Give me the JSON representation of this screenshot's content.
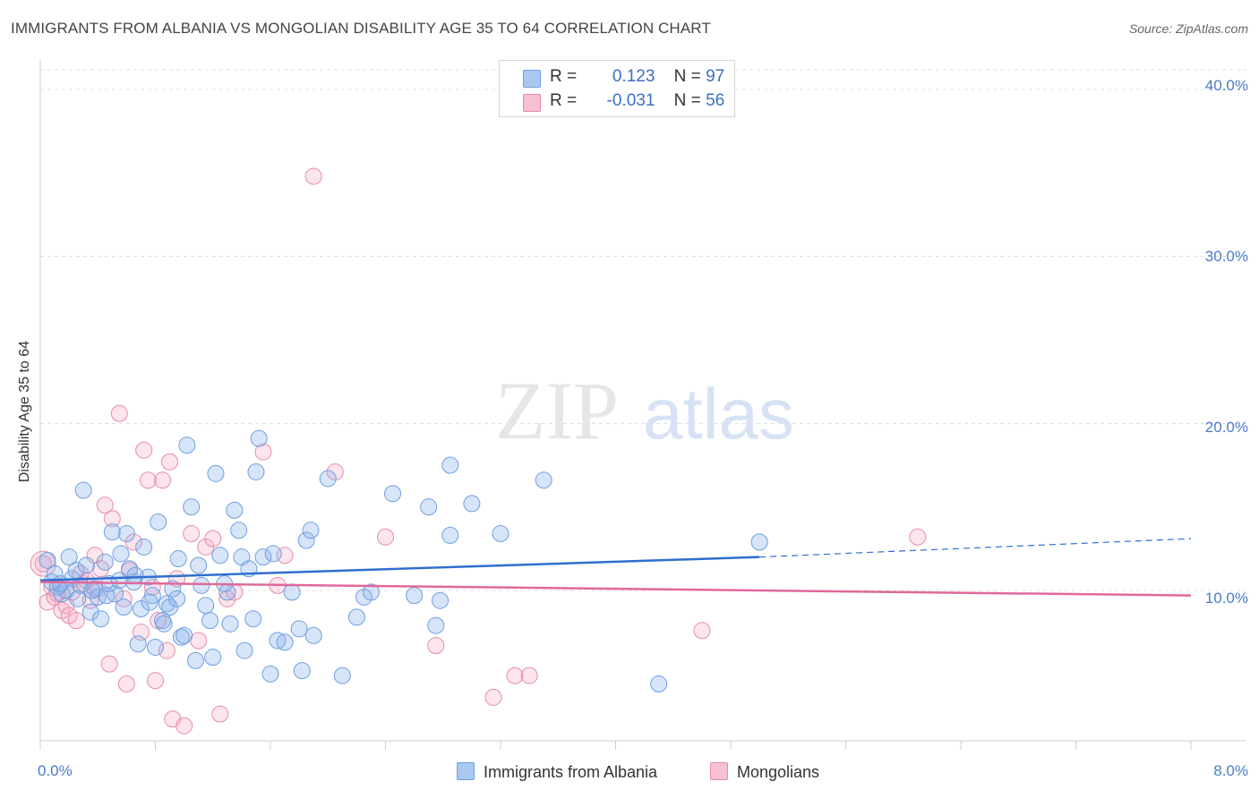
{
  "header": {
    "title": "IMMIGRANTS FROM ALBANIA VS MONGOLIAN DISABILITY AGE 35 TO 64 CORRELATION CHART",
    "source": "Source: ZipAtlas.com"
  },
  "watermark": {
    "zip": "ZIP",
    "atlas": "atlas"
  },
  "legend": {
    "r_label": "R =",
    "n_label": "N =",
    "rows": [
      {
        "r": "0.123",
        "n": "97",
        "color": "#a9c8ef",
        "border": "#6f9fe0"
      },
      {
        "r": "-0.031",
        "n": "56",
        "color": "#f7c0d3",
        "border": "#e88aaa"
      }
    ]
  },
  "bottom_legend": {
    "series1": "Immigrants from Albania",
    "series2": "Mongolians"
  },
  "axes": {
    "ylabel": "Disability Age 35 to 64",
    "yticks": [
      "40.0%",
      "30.0%",
      "20.0%",
      "10.0%"
    ],
    "x_min_label": "0.0%",
    "x_max_label": "8.0%"
  },
  "colors": {
    "blue_fill": "rgba(140,180,235,0.35)",
    "blue_stroke": "#6f9fe0",
    "blue_line": "#2f6fcf",
    "pink_fill": "rgba(245,170,195,0.30)",
    "pink_stroke": "#e88aaa",
    "pink_line": "#e0699a"
  },
  "chart_data": {
    "type": "scatter",
    "xlabel": "",
    "ylabel": "Disability Age 35 to 64",
    "xlim": [
      0,
      8
    ],
    "ylim": [
      1,
      41.5
    ],
    "grid": true,
    "legend_placement": "top-center",
    "series": [
      {
        "name": "Immigrants from Albania",
        "r": 0.123,
        "n": 97,
        "trend": {
          "x0": 0,
          "y0": 10.6,
          "x1": 5.0,
          "y1": 12.0,
          "dashed_to_x": 8.0,
          "dashed_y": 13.1
        },
        "points": [
          [
            0.05,
            11.8
          ],
          [
            0.08,
            10.5
          ],
          [
            0.12,
            10.2
          ],
          [
            0.15,
            9.8
          ],
          [
            0.18,
            10.0
          ],
          [
            0.2,
            12.0
          ],
          [
            0.22,
            10.7
          ],
          [
            0.25,
            11.2
          ],
          [
            0.28,
            10.3
          ],
          [
            0.3,
            16.0
          ],
          [
            0.32,
            11.5
          ],
          [
            0.35,
            8.7
          ],
          [
            0.38,
            10.1
          ],
          [
            0.4,
            9.6
          ],
          [
            0.42,
            8.3
          ],
          [
            0.45,
            11.7
          ],
          [
            0.48,
            10.4
          ],
          [
            0.5,
            13.5
          ],
          [
            0.52,
            9.8
          ],
          [
            0.55,
            10.6
          ],
          [
            0.58,
            9.0
          ],
          [
            0.6,
            13.4
          ],
          [
            0.62,
            11.3
          ],
          [
            0.65,
            10.5
          ],
          [
            0.68,
            6.8
          ],
          [
            0.7,
            8.9
          ],
          [
            0.72,
            12.6
          ],
          [
            0.75,
            10.8
          ],
          [
            0.78,
            9.7
          ],
          [
            0.8,
            6.6
          ],
          [
            0.82,
            14.1
          ],
          [
            0.85,
            8.2
          ],
          [
            0.88,
            9.2
          ],
          [
            0.9,
            9.0
          ],
          [
            0.92,
            10.1
          ],
          [
            0.95,
            9.5
          ],
          [
            0.98,
            7.2
          ],
          [
            1.0,
            7.3
          ],
          [
            1.02,
            18.7
          ],
          [
            1.05,
            15.0
          ],
          [
            1.08,
            5.8
          ],
          [
            1.1,
            11.5
          ],
          [
            1.12,
            10.3
          ],
          [
            1.15,
            9.1
          ],
          [
            1.18,
            8.2
          ],
          [
            1.2,
            6.0
          ],
          [
            1.22,
            17.0
          ],
          [
            1.25,
            12.1
          ],
          [
            1.28,
            10.4
          ],
          [
            1.3,
            9.9
          ],
          [
            1.32,
            8.0
          ],
          [
            1.35,
            14.8
          ],
          [
            1.38,
            13.6
          ],
          [
            1.4,
            12.0
          ],
          [
            1.42,
            6.4
          ],
          [
            1.45,
            11.3
          ],
          [
            1.48,
            8.3
          ],
          [
            1.5,
            17.1
          ],
          [
            1.52,
            19.1
          ],
          [
            1.55,
            12.0
          ],
          [
            1.6,
            5.0
          ],
          [
            1.62,
            12.2
          ],
          [
            1.65,
            7.0
          ],
          [
            1.7,
            6.9
          ],
          [
            1.75,
            9.9
          ],
          [
            1.8,
            7.7
          ],
          [
            1.82,
            5.2
          ],
          [
            1.85,
            13.0
          ],
          [
            1.88,
            13.6
          ],
          [
            1.9,
            7.3
          ],
          [
            2.0,
            16.7
          ],
          [
            2.1,
            4.9
          ],
          [
            2.2,
            8.4
          ],
          [
            2.25,
            9.6
          ],
          [
            2.3,
            9.9
          ],
          [
            2.45,
            15.8
          ],
          [
            2.6,
            9.7
          ],
          [
            2.7,
            15.0
          ],
          [
            2.75,
            7.9
          ],
          [
            2.78,
            9.4
          ],
          [
            2.85,
            13.3
          ],
          [
            2.85,
            17.5
          ],
          [
            3.0,
            15.2
          ],
          [
            3.2,
            13.4
          ],
          [
            3.5,
            16.6
          ],
          [
            4.3,
            4.4
          ],
          [
            5.0,
            12.9
          ],
          [
            0.1,
            11.0
          ],
          [
            0.14,
            10.4
          ],
          [
            0.26,
            9.5
          ],
          [
            0.36,
            10.0
          ],
          [
            0.46,
            9.7
          ],
          [
            0.56,
            12.2
          ],
          [
            0.66,
            10.9
          ],
          [
            0.76,
            9.3
          ],
          [
            0.86,
            8.0
          ],
          [
            0.96,
            11.9
          ]
        ]
      },
      {
        "name": "Mongolians",
        "r": -0.031,
        "n": 56,
        "trend": {
          "x0": 0,
          "y0": 10.5,
          "x1": 8.0,
          "y1": 9.7
        },
        "points": [
          [
            0.02,
            11.6
          ],
          [
            0.05,
            9.3
          ],
          [
            0.08,
            10.2
          ],
          [
            0.1,
            9.6
          ],
          [
            0.12,
            9.8
          ],
          [
            0.15,
            8.8
          ],
          [
            0.18,
            9.1
          ],
          [
            0.2,
            8.5
          ],
          [
            0.22,
            9.9
          ],
          [
            0.25,
            8.2
          ],
          [
            0.28,
            11.0
          ],
          [
            0.3,
            10.4
          ],
          [
            0.32,
            10.6
          ],
          [
            0.35,
            9.4
          ],
          [
            0.38,
            12.1
          ],
          [
            0.4,
            10.1
          ],
          [
            0.42,
            11.3
          ],
          [
            0.45,
            15.1
          ],
          [
            0.48,
            5.6
          ],
          [
            0.5,
            14.3
          ],
          [
            0.55,
            20.6
          ],
          [
            0.58,
            9.5
          ],
          [
            0.6,
            4.4
          ],
          [
            0.62,
            11.2
          ],
          [
            0.65,
            12.9
          ],
          [
            0.7,
            7.5
          ],
          [
            0.72,
            18.4
          ],
          [
            0.75,
            16.6
          ],
          [
            0.78,
            10.2
          ],
          [
            0.8,
            4.6
          ],
          [
            0.82,
            8.2
          ],
          [
            0.85,
            16.6
          ],
          [
            0.88,
            6.4
          ],
          [
            0.9,
            17.7
          ],
          [
            0.92,
            2.3
          ],
          [
            0.95,
            10.7
          ],
          [
            1.0,
            1.9
          ],
          [
            1.05,
            13.4
          ],
          [
            1.1,
            7.0
          ],
          [
            1.15,
            12.6
          ],
          [
            1.2,
            13.1
          ],
          [
            1.25,
            2.6
          ],
          [
            1.3,
            9.5
          ],
          [
            1.35,
            9.9
          ],
          [
            1.55,
            18.3
          ],
          [
            1.65,
            10.3
          ],
          [
            1.7,
            12.1
          ],
          [
            1.9,
            34.8
          ],
          [
            2.05,
            17.1
          ],
          [
            2.4,
            13.2
          ],
          [
            2.75,
            6.7
          ],
          [
            3.15,
            3.6
          ],
          [
            3.3,
            4.9
          ],
          [
            3.4,
            4.9
          ],
          [
            4.6,
            7.6
          ],
          [
            6.1,
            13.2
          ]
        ]
      }
    ]
  }
}
